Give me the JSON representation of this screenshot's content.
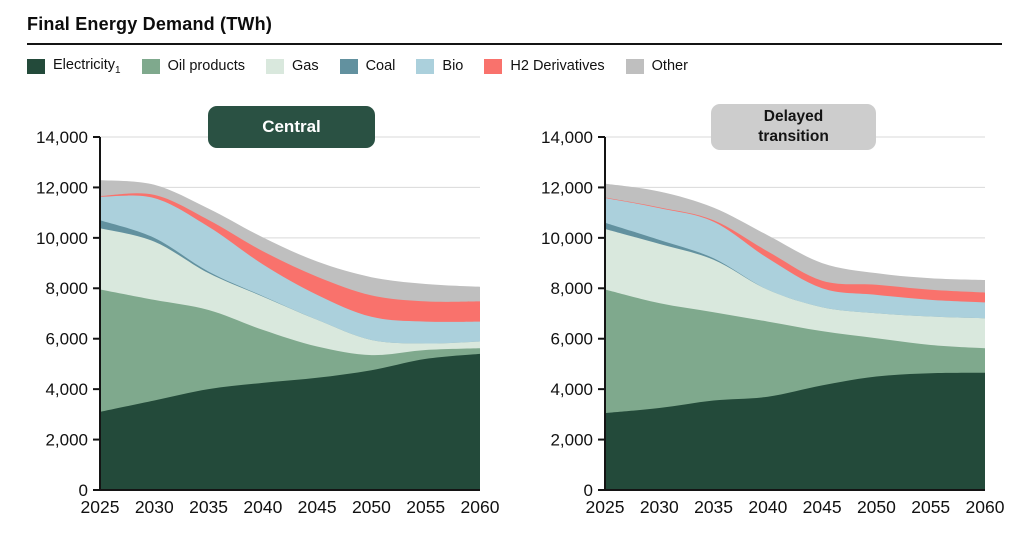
{
  "title": "Final Energy Demand (TWh)",
  "badges": {
    "central": "Central",
    "delayed": "Delayed\ntransition"
  },
  "legend": {
    "items": [
      {
        "label": "Electricity",
        "subscript": "1",
        "color": "#234a3a"
      },
      {
        "label": "Oil products",
        "subscript": "",
        "color": "#7fa98d"
      },
      {
        "label": "Gas",
        "subscript": "",
        "color": "#d9e8dd"
      },
      {
        "label": "Coal",
        "subscript": "",
        "color": "#62919f"
      },
      {
        "label": "Bio",
        "subscript": "",
        "color": "#abd0dc"
      },
      {
        "label": "H2 Derivatives",
        "subscript": "",
        "color": "#f9726c"
      },
      {
        "label": "Other",
        "subscript": "",
        "color": "#bfbfbf"
      }
    ]
  },
  "chart_data": [
    {
      "type": "area",
      "stacked": true,
      "title": "Central",
      "unit": "TWh",
      "x": [
        2025,
        2030,
        2035,
        2040,
        2045,
        2050,
        2055,
        2060
      ],
      "ylim": [
        0,
        14000
      ],
      "ytick_step": 2000,
      "grid": true,
      "series": [
        {
          "name": "Electricity",
          "color": "#234a3a",
          "values": [
            3100,
            3550,
            4000,
            4250,
            4450,
            4750,
            5200,
            5400
          ]
        },
        {
          "name": "Oil products",
          "color": "#7fa98d",
          "values": [
            4850,
            3990,
            3140,
            2100,
            1240,
            600,
            350,
            220
          ]
        },
        {
          "name": "Gas",
          "color": "#d9e8dd",
          "values": [
            2430,
            2310,
            1460,
            1320,
            1060,
            600,
            260,
            270
          ]
        },
        {
          "name": "Coal",
          "color": "#62919f",
          "values": [
            320,
            150,
            60,
            20,
            0,
            0,
            0,
            0
          ]
        },
        {
          "name": "Bio",
          "color": "#abd0dc",
          "values": [
            930,
            1575,
            1780,
            1260,
            990,
            920,
            870,
            790
          ]
        },
        {
          "name": "H2 Derivatives",
          "color": "#f9726c",
          "values": [
            30,
            130,
            270,
            520,
            720,
            850,
            800,
            800
          ]
        },
        {
          "name": "Other",
          "color": "#bfbfbf",
          "values": [
            630,
            400,
            450,
            550,
            600,
            720,
            690,
            580
          ]
        }
      ]
    },
    {
      "type": "area",
      "stacked": true,
      "title": "Delayed transition",
      "unit": "TWh",
      "x": [
        2025,
        2030,
        2035,
        2040,
        2045,
        2050,
        2055,
        2060
      ],
      "ylim": [
        0,
        14000
      ],
      "ytick_step": 2000,
      "grid": true,
      "series": [
        {
          "name": "Electricity",
          "color": "#234a3a",
          "values": [
            3050,
            3250,
            3550,
            3700,
            4150,
            4500,
            4630,
            4650
          ]
        },
        {
          "name": "Oil products",
          "color": "#7fa98d",
          "values": [
            4900,
            4160,
            3500,
            2980,
            2150,
            1520,
            1120,
            970
          ]
        },
        {
          "name": "Gas",
          "color": "#d9e8dd",
          "values": [
            2400,
            2350,
            2080,
            1260,
            950,
            990,
            1130,
            1190
          ]
        },
        {
          "name": "Coal",
          "color": "#62919f",
          "values": [
            250,
            160,
            60,
            0,
            0,
            0,
            0,
            0
          ]
        },
        {
          "name": "Bio",
          "color": "#abd0dc",
          "values": [
            980,
            1260,
            1450,
            1250,
            750,
            730,
            660,
            630
          ]
        },
        {
          "name": "H2 Derivatives",
          "color": "#f9726c",
          "values": [
            20,
            30,
            60,
            270,
            300,
            400,
            400,
            390
          ]
        },
        {
          "name": "Other",
          "color": "#bfbfbf",
          "values": [
            550,
            630,
            500,
            640,
            700,
            460,
            460,
            500
          ]
        }
      ]
    }
  ]
}
